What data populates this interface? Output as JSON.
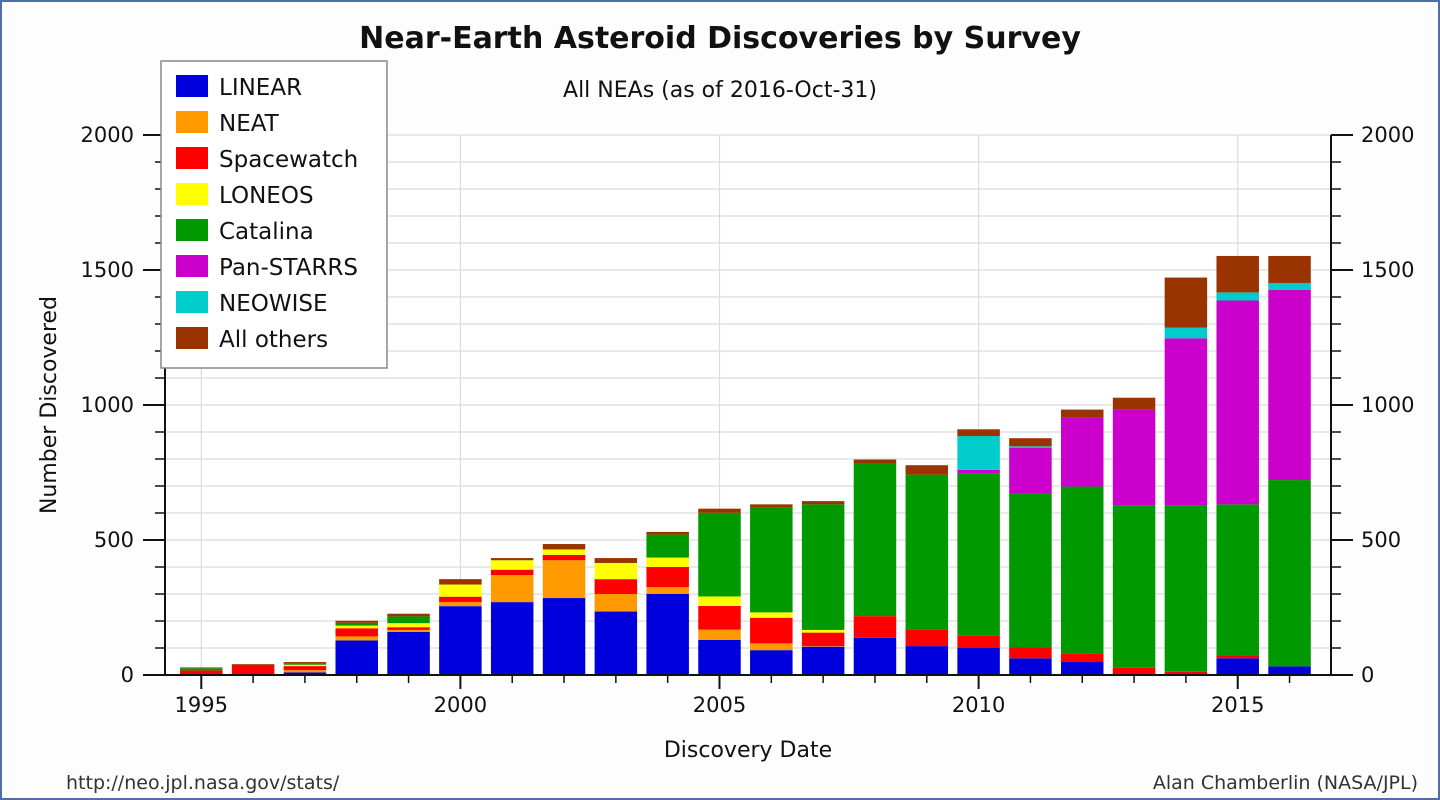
{
  "chart_data": {
    "type": "bar",
    "stacked": true,
    "title": "Near-Earth Asteroid Discoveries by Survey",
    "subtitle": "All NEAs (as of 2016-Oct-31)",
    "xlabel": "Discovery Date",
    "ylabel": "Number Discovered",
    "ylim": [
      0,
      2000
    ],
    "yticks": [
      0,
      500,
      1000,
      1500,
      2000
    ],
    "xticks": [
      1995,
      2000,
      2005,
      2010,
      2015
    ],
    "grid": true,
    "legend_position": "top-left",
    "categories": [
      1995,
      1996,
      1997,
      1998,
      1999,
      2000,
      2001,
      2002,
      2003,
      2004,
      2005,
      2006,
      2007,
      2008,
      2009,
      2010,
      2011,
      2012,
      2013,
      2014,
      2015,
      2016
    ],
    "series": [
      {
        "name": "LINEAR",
        "color": "#0000dd",
        "values": [
          0,
          0,
          10,
          128,
          160,
          255,
          270,
          285,
          235,
          300,
          130,
          92,
          105,
          138,
          107,
          100,
          62,
          48,
          2,
          2,
          62,
          32
        ]
      },
      {
        "name": "NEAT",
        "color": "#ff9900",
        "values": [
          2,
          2,
          8,
          15,
          7,
          15,
          100,
          140,
          65,
          25,
          38,
          25,
          2,
          0,
          0,
          0,
          0,
          0,
          0,
          0,
          0,
          0
        ]
      },
      {
        "name": "Spacewatch",
        "color": "#ff0000",
        "values": [
          15,
          35,
          15,
          30,
          10,
          20,
          20,
          20,
          55,
          75,
          88,
          95,
          50,
          80,
          60,
          45,
          40,
          30,
          25,
          10,
          10,
          0
        ]
      },
      {
        "name": "LONEOS",
        "color": "#ffff00",
        "values": [
          0,
          0,
          5,
          10,
          15,
          45,
          35,
          20,
          60,
          35,
          35,
          20,
          10,
          0,
          0,
          0,
          0,
          0,
          0,
          0,
          0,
          0
        ]
      },
      {
        "name": "Catalina",
        "color": "#009900",
        "values": [
          8,
          0,
          5,
          10,
          25,
          0,
          0,
          0,
          0,
          85,
          310,
          390,
          465,
          565,
          575,
          600,
          570,
          620,
          600,
          615,
          560,
          690
        ]
      },
      {
        "name": "Pan-STARRS",
        "color": "#cc00cc",
        "values": [
          0,
          0,
          0,
          0,
          0,
          0,
          0,
          0,
          0,
          0,
          0,
          0,
          0,
          0,
          0,
          15,
          170,
          255,
          355,
          620,
          755,
          705
        ]
      },
      {
        "name": "NEOWISE",
        "color": "#00cccc",
        "values": [
          0,
          0,
          0,
          0,
          0,
          0,
          0,
          0,
          0,
          0,
          0,
          0,
          0,
          0,
          0,
          125,
          5,
          0,
          0,
          40,
          30,
          25
        ]
      },
      {
        "name": "All others",
        "color": "#993300",
        "values": [
          3,
          3,
          5,
          8,
          10,
          20,
          8,
          20,
          18,
          10,
          15,
          10,
          12,
          15,
          35,
          25,
          30,
          30,
          45,
          185,
          135,
          100
        ]
      }
    ]
  },
  "footer": {
    "left": "http://neo.jpl.nasa.gov/stats/",
    "right": "Alan Chamberlin (NASA/JPL)"
  }
}
